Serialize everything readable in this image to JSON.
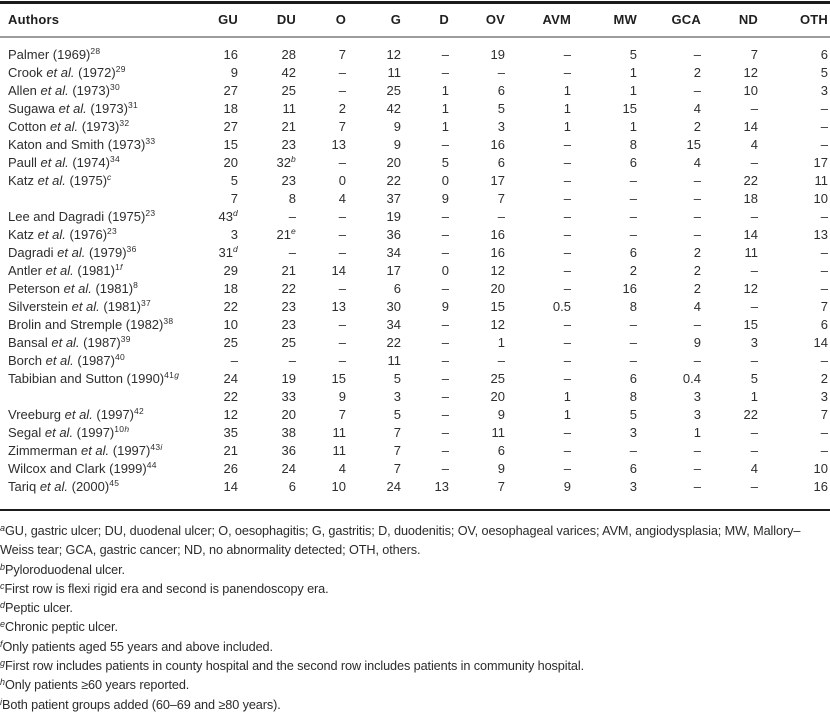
{
  "table": {
    "columns": [
      "Authors",
      "GU",
      "DU",
      "O",
      "G",
      "D",
      "OV",
      "AVM",
      "MW",
      "GCA",
      "ND",
      "OTH"
    ],
    "rows": [
      {
        "author": "Palmer",
        "etal": false,
        "year": "(1969)",
        "ref": "28",
        "note": "",
        "values": [
          "16",
          "28",
          "7",
          "12",
          "–",
          "19",
          "–",
          "5",
          "–",
          "7",
          "6"
        ]
      },
      {
        "author": "Crook",
        "etal": true,
        "year": "(1972)",
        "ref": "29",
        "note": "",
        "values": [
          "9",
          "42",
          "–",
          "11",
          "–",
          "–",
          "–",
          "1",
          "2",
          "12",
          "5"
        ]
      },
      {
        "author": "Allen",
        "etal": true,
        "year": "(1973)",
        "ref": "30",
        "note": "",
        "values": [
          "27",
          "25",
          "–",
          "25",
          "1",
          "6",
          "1",
          "1",
          "–",
          "10",
          "3"
        ]
      },
      {
        "author": "Sugawa",
        "etal": true,
        "year": "(1973)",
        "ref": "31",
        "note": "",
        "values": [
          "18",
          "11",
          "2",
          "42",
          "1",
          "5",
          "1",
          "15",
          "4",
          "–",
          "–"
        ]
      },
      {
        "author": "Cotton",
        "etal": true,
        "year": "(1973)",
        "ref": "32",
        "note": "",
        "values": [
          "27",
          "21",
          "7",
          "9",
          "1",
          "3",
          "1",
          "1",
          "2",
          "14",
          "–"
        ]
      },
      {
        "author": "Katon and Smith",
        "etal": false,
        "year": "(1973)",
        "ref": "33",
        "note": "",
        "values": [
          "15",
          "23",
          "13",
          "9",
          "–",
          "16",
          "–",
          "8",
          "15",
          "4",
          "–"
        ]
      },
      {
        "author": "Paull",
        "etal": true,
        "year": "(1974)",
        "ref": "34",
        "note": "",
        "values": [
          "20",
          "32^b",
          "–",
          "20",
          "5",
          "6",
          "–",
          "6",
          "4",
          "–",
          "17"
        ]
      },
      {
        "author": "Katz",
        "etal": true,
        "year": "(1975)",
        "ref": "",
        "note": "c",
        "values": [
          "5",
          "23",
          "0",
          "22",
          "0",
          "17",
          "–",
          "–",
          "–",
          "22",
          "11"
        ]
      },
      {
        "author": "",
        "etal": false,
        "year": "",
        "ref": "",
        "note": "",
        "values": [
          "7",
          "8",
          "4",
          "37",
          "9",
          "7",
          "–",
          "–",
          "–",
          "18",
          "10"
        ]
      },
      {
        "author": "Lee and Dagradi",
        "etal": false,
        "year": "(1975)",
        "ref": "23",
        "note": "",
        "values": [
          "43^d",
          "–",
          "–",
          "19",
          "–",
          "–",
          "–",
          "–",
          "–",
          "–",
          "–"
        ]
      },
      {
        "author": "Katz",
        "etal": true,
        "year": "(1976)",
        "ref": "23",
        "note": "",
        "values": [
          "3",
          "21^e",
          "–",
          "36",
          "–",
          "16",
          "–",
          "–",
          "–",
          "14",
          "13"
        ]
      },
      {
        "author": "Dagradi",
        "etal": true,
        "year": "(1979)",
        "ref": "36",
        "note": "",
        "values": [
          "31^d",
          "–",
          "–",
          "34",
          "–",
          "16",
          "–",
          "6",
          "2",
          "11",
          "–"
        ]
      },
      {
        "author": "Antler",
        "etal": true,
        "year": "(1981)",
        "ref": "1",
        "note": "f",
        "values": [
          "29",
          "21",
          "14",
          "17",
          "0",
          "12",
          "–",
          "2",
          "2",
          "–",
          "–"
        ]
      },
      {
        "author": "Peterson",
        "etal": true,
        "year": "(1981)",
        "ref": "8",
        "note": "",
        "values": [
          "18",
          "22",
          "–",
          "6",
          "–",
          "20",
          "–",
          "16",
          "2",
          "12",
          "–"
        ]
      },
      {
        "author": "Silverstein",
        "etal": true,
        "year": "(1981)",
        "ref": "37",
        "note": "",
        "values": [
          "22",
          "23",
          "13",
          "30",
          "9",
          "15",
          "0.5",
          "8",
          "4",
          "–",
          "7"
        ]
      },
      {
        "author": "Brolin and Stremple",
        "etal": false,
        "year": "(1982)",
        "ref": "38",
        "note": "",
        "values": [
          "10",
          "23",
          "–",
          "34",
          "–",
          "12",
          "–",
          "–",
          "–",
          "15",
          "6"
        ]
      },
      {
        "author": "Bansal",
        "etal": true,
        "year": "(1987)",
        "ref": "39",
        "note": "",
        "values": [
          "25",
          "25",
          "–",
          "22",
          "–",
          "1",
          "–",
          "–",
          "9",
          "3",
          "14"
        ]
      },
      {
        "author": "Borch",
        "etal": true,
        "year": "(1987)",
        "ref": "40",
        "note": "",
        "values": [
          "–",
          "–",
          "–",
          "11",
          "–",
          "–",
          "–",
          "–",
          "–",
          "–",
          "–"
        ]
      },
      {
        "author": "Tabibian and Sutton",
        "etal": false,
        "year": "(1990)",
        "ref": "41",
        "note": "g",
        "values": [
          "24",
          "19",
          "15",
          "5",
          "–",
          "25",
          "–",
          "6",
          "0.4",
          "5",
          "2"
        ]
      },
      {
        "author": "",
        "etal": false,
        "year": "",
        "ref": "",
        "note": "",
        "values": [
          "22",
          "33",
          "9",
          "3",
          "–",
          "20",
          "1",
          "8",
          "3",
          "1",
          "3"
        ]
      },
      {
        "author": "Vreeburg",
        "etal": true,
        "year": "(1997)",
        "ref": "42",
        "note": "",
        "values": [
          "12",
          "20",
          "7",
          "5",
          "–",
          "9",
          "1",
          "5",
          "3",
          "22",
          "7"
        ]
      },
      {
        "author": "Segal",
        "etal": true,
        "year": "(1997)",
        "ref": "10",
        "note": "h",
        "values": [
          "35",
          "38",
          "11",
          "7",
          "–",
          "11",
          "–",
          "3",
          "1",
          "–",
          "–"
        ]
      },
      {
        "author": "Zimmerman",
        "etal": true,
        "year": "(1997)",
        "ref": "43",
        "note": "i",
        "values": [
          "21",
          "36",
          "11",
          "7",
          "–",
          "6",
          "–",
          "–",
          "–",
          "–",
          "–"
        ]
      },
      {
        "author": "Wilcox and Clark",
        "etal": false,
        "year": "(1999)",
        "ref": "44",
        "note": "",
        "values": [
          "26",
          "24",
          "4",
          "7",
          "–",
          "9",
          "–",
          "6",
          "–",
          "4",
          "10"
        ]
      },
      {
        "author": "Tariq",
        "etal": true,
        "year": "(2000)",
        "ref": "45",
        "note": "",
        "values": [
          "14",
          "6",
          "10",
          "24",
          "13",
          "7",
          "9",
          "3",
          "–",
          "–",
          "16"
        ]
      }
    ]
  },
  "footnotes": [
    {
      "marker": "a",
      "text": "GU, gastric ulcer; DU, duodenal ulcer; O, oesophagitis; G, gastritis; D, duodenitis; OV, oesophageal varices; AVM, angiodysplasia; MW, Mallory–Weiss tear; GCA, gastric cancer; ND, no abnormality detected; OTH, others."
    },
    {
      "marker": "b",
      "text": "Pyloroduodenal ulcer."
    },
    {
      "marker": "c",
      "text": "First row is flexi rigid era and second is panendoscopy era."
    },
    {
      "marker": "d",
      "text": "Peptic ulcer."
    },
    {
      "marker": "e",
      "text": "Chronic peptic ulcer."
    },
    {
      "marker": "f",
      "text": "Only patients aged 55 years and above included."
    },
    {
      "marker": "g",
      "text": "First row includes patients in county hospital and the second row includes patients in community hospital."
    },
    {
      "marker": "h",
      "text": "Only patients ≥60 years reported."
    },
    {
      "marker": "i",
      "text": "Both patient groups added (60–69 and ≥80 years)."
    }
  ]
}
